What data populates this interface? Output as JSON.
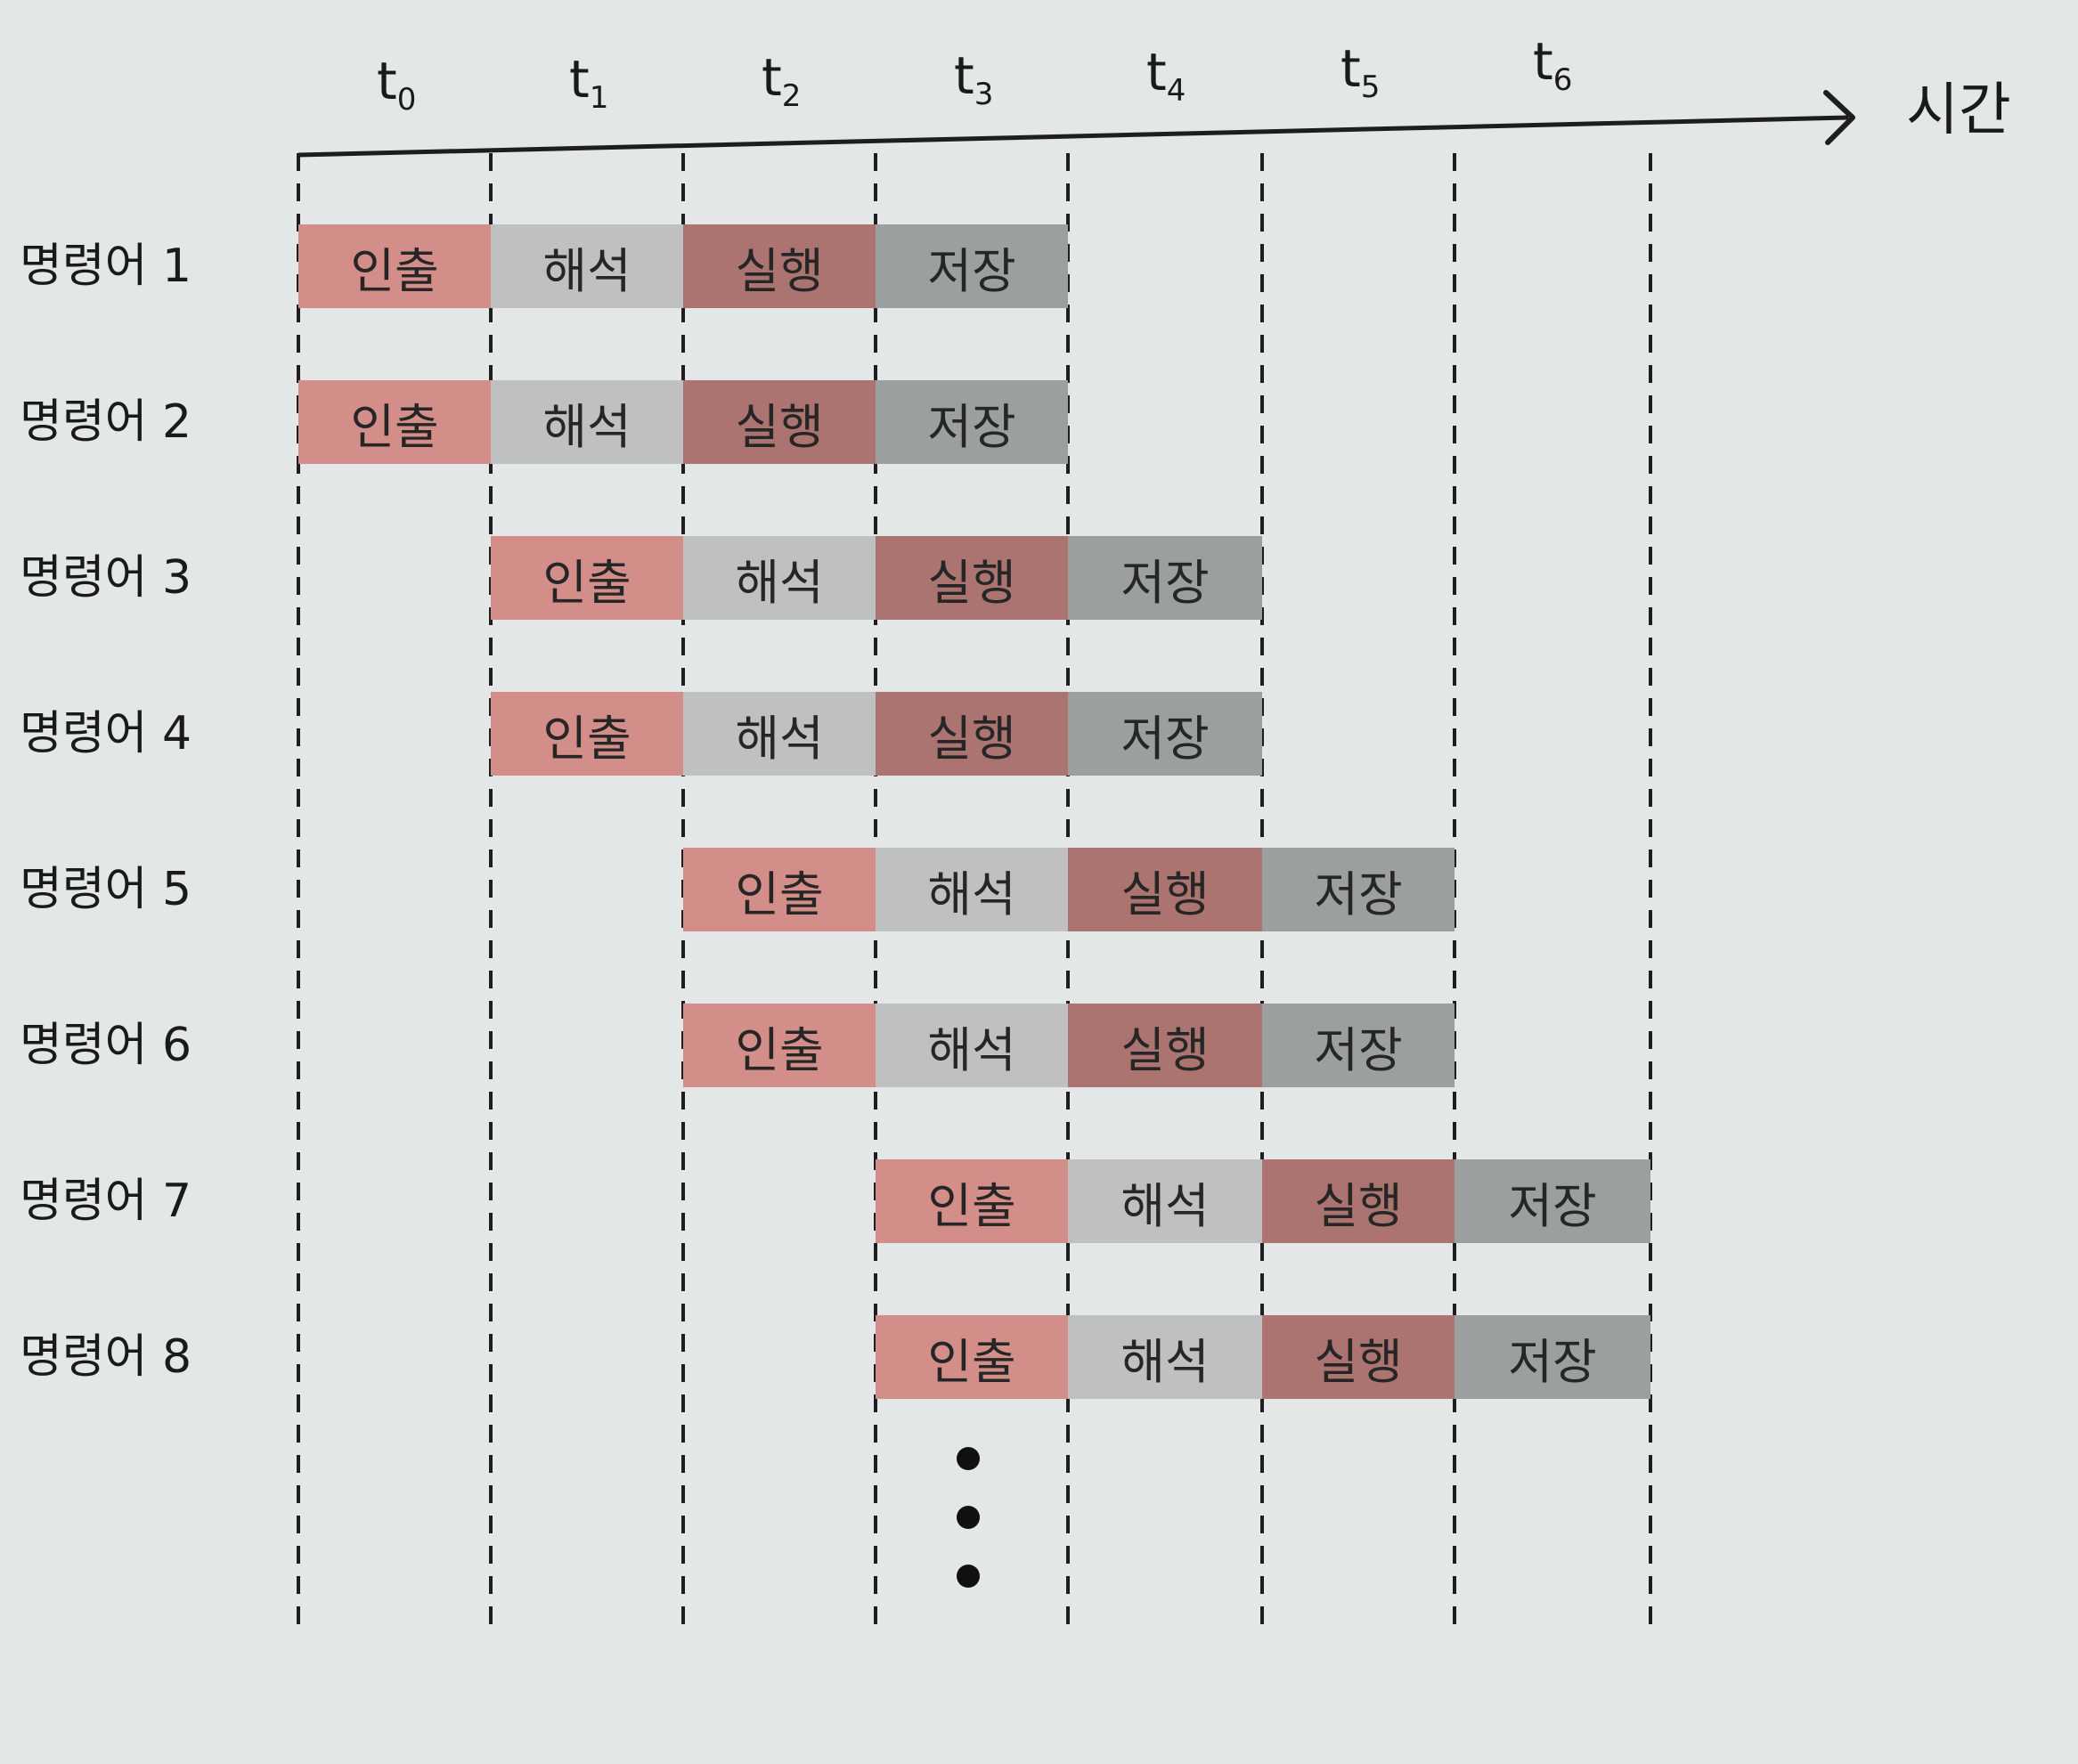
{
  "axis": {
    "label": "시간",
    "ticks": [
      {
        "base": "t",
        "sub": "0"
      },
      {
        "base": "t",
        "sub": "1"
      },
      {
        "base": "t",
        "sub": "2"
      },
      {
        "base": "t",
        "sub": "3"
      },
      {
        "base": "t",
        "sub": "4"
      },
      {
        "base": "t",
        "sub": "5"
      },
      {
        "base": "t",
        "sub": "6"
      }
    ]
  },
  "stages": [
    {
      "name": "인출",
      "color": "#d48e8a"
    },
    {
      "name": "해석",
      "color": "#bfc0c0"
    },
    {
      "name": "실행",
      "color": "#ac7470"
    },
    {
      "name": "저장",
      "color": "#9c9fa0"
    }
  ],
  "instructions": [
    {
      "label": "명령어 1",
      "start": 0
    },
    {
      "label": "명령어 2",
      "start": 0
    },
    {
      "label": "명령어 3",
      "start": 1
    },
    {
      "label": "명령어 4",
      "start": 1
    },
    {
      "label": "명령어 5",
      "start": 2
    },
    {
      "label": "명령어 6",
      "start": 2
    },
    {
      "label": "명령어 7",
      "start": 3
    },
    {
      "label": "명령어 8",
      "start": 3
    }
  ],
  "continuation_dots": 3
}
